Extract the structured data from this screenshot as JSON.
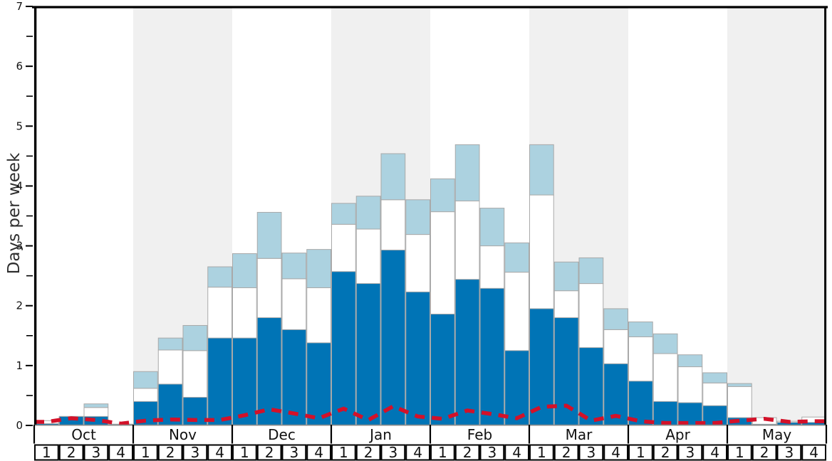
{
  "chart_data": {
    "type": "bar",
    "title": "",
    "ylabel": "Days per week",
    "ylim": [
      0,
      7
    ],
    "yticks": [
      0,
      1,
      2,
      3,
      4,
      5,
      6,
      7
    ],
    "minor_tick_step": 0.5,
    "grid": false,
    "legend_position": "none",
    "months": [
      "Oct",
      "Nov",
      "Dec",
      "Jan",
      "Feb",
      "Mar",
      "Apr",
      "May"
    ],
    "week_labels_per_month": [
      "1",
      "2",
      "3",
      "4"
    ],
    "background_bands": {
      "shaded_months": [
        "Nov",
        "Jan",
        "Mar",
        "May"
      ],
      "color": "#f0f0f0"
    },
    "colors": {
      "dark_blue": "#0074b6",
      "white_segment": "#ffffff",
      "light_blue": "#acd2e0",
      "red_line": "#d31129",
      "bar_border": "#a9a9a9",
      "axis": "#000000",
      "baseline": "#8a8a8a",
      "text": "#111111"
    },
    "series": [
      {
        "name": "dark_blue_segment",
        "type": "stacked_bar_cumulative_top",
        "color": "#0074b6",
        "values": [
          0.03,
          0.15,
          0.15,
          0.02,
          0.4,
          0.69,
          0.47,
          1.46,
          1.46,
          1.8,
          1.6,
          1.38,
          2.57,
          2.37,
          2.93,
          2.23,
          1.86,
          2.44,
          2.29,
          1.25,
          1.95,
          1.8,
          1.3,
          1.03,
          0.74,
          0.4,
          0.38,
          0.33,
          0.13,
          0.02,
          0.05,
          0.05
        ]
      },
      {
        "name": "white_segment",
        "type": "stacked_bar_cumulative_top",
        "color": "#ffffff",
        "values": [
          0.08,
          0.15,
          0.3,
          0.02,
          0.62,
          1.26,
          1.25,
          2.31,
          2.3,
          2.79,
          2.45,
          2.3,
          3.36,
          3.28,
          3.77,
          3.19,
          3.57,
          3.75,
          3.0,
          2.56,
          3.85,
          2.25,
          2.37,
          1.6,
          1.48,
          1.2,
          0.98,
          0.71,
          0.65,
          0.13,
          0.07,
          0.14
        ]
      },
      {
        "name": "light_blue_segment",
        "type": "stacked_bar_cumulative_top",
        "color": "#acd2e0",
        "values": [
          0.08,
          0.15,
          0.36,
          0.02,
          0.9,
          1.46,
          1.67,
          2.65,
          2.87,
          3.56,
          2.88,
          2.94,
          3.71,
          3.83,
          4.54,
          3.77,
          4.12,
          4.69,
          3.63,
          3.05,
          4.69,
          2.73,
          2.8,
          1.95,
          1.73,
          1.53,
          1.18,
          0.88,
          0.7,
          0.13,
          0.07,
          0.14
        ]
      },
      {
        "name": "red_dashed_line",
        "type": "dashed_line",
        "color": "#d31129",
        "values": [
          0.06,
          0.12,
          0.09,
          0.03,
          0.08,
          0.1,
          0.09,
          0.09,
          0.17,
          0.27,
          0.2,
          0.12,
          0.28,
          0.09,
          0.32,
          0.15,
          0.11,
          0.25,
          0.19,
          0.12,
          0.31,
          0.33,
          0.08,
          0.16,
          0.07,
          0.04,
          0.04,
          0.04,
          0.08,
          0.11,
          0.06,
          0.07
        ]
      }
    ]
  }
}
